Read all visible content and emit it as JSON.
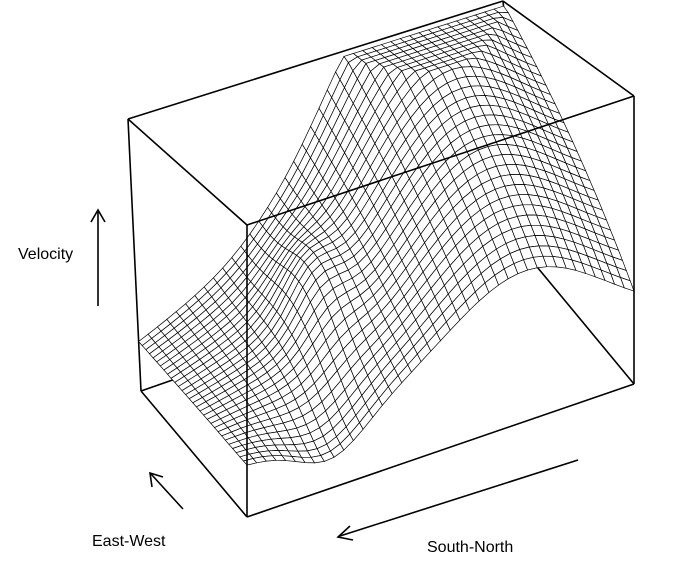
{
  "chart_data": {
    "type": "surface",
    "title": "",
    "axes": {
      "x": {
        "label": "South-North"
      },
      "y": {
        "label": "East-West"
      },
      "z": {
        "label": "Velocity"
      }
    },
    "box": true,
    "ticks": false,
    "grid_resolution": {
      "rows": 30,
      "cols": 40
    },
    "surface_description_values": {
      "z_min": 0,
      "z_max": 1
    },
    "colors": {
      "mesh": "#000000",
      "face": "#ffffff",
      "background": "#ffffff"
    }
  }
}
